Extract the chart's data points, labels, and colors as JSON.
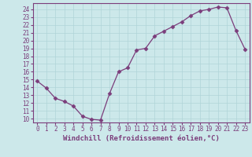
{
  "x": [
    0,
    1,
    2,
    3,
    4,
    5,
    6,
    7,
    8,
    9,
    10,
    11,
    12,
    13,
    14,
    15,
    16,
    17,
    18,
    19,
    20,
    21,
    22,
    23
  ],
  "y": [
    14.8,
    13.9,
    12.6,
    12.2,
    11.6,
    10.3,
    9.9,
    9.8,
    13.2,
    16.0,
    16.5,
    18.8,
    19.0,
    20.6,
    21.2,
    21.8,
    22.4,
    23.2,
    23.8,
    24.0,
    24.3,
    24.2,
    21.3,
    18.9
  ],
  "line_color": "#7b3d7b",
  "marker": "D",
  "marker_size": 2.5,
  "bg_color": "#cce8ea",
  "grid_color": "#b0d4d8",
  "axis_color": "#7b3d7b",
  "xlabel": "Windchill (Refroidissement éolien,°C)",
  "xlim": [
    -0.5,
    23.5
  ],
  "ylim": [
    9.5,
    24.8
  ],
  "yticks": [
    10,
    11,
    12,
    13,
    14,
    15,
    16,
    17,
    18,
    19,
    20,
    21,
    22,
    23,
    24
  ],
  "xticks": [
    0,
    1,
    2,
    3,
    4,
    5,
    6,
    7,
    8,
    9,
    10,
    11,
    12,
    13,
    14,
    15,
    16,
    17,
    18,
    19,
    20,
    21,
    22,
    23
  ],
  "tick_fontsize": 5.5,
  "label_fontsize": 6.5
}
